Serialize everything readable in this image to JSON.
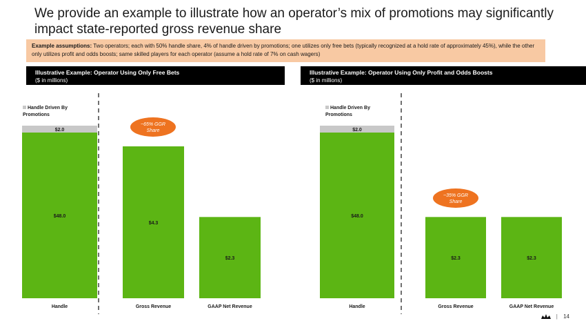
{
  "title": "We provide an example to illustrate how an operator’s mix of promotions may significantly impact state-reported gross revenue share",
  "assumptions": {
    "label": "Example assumptions:",
    "text": "Two operators; each with 50% handle share, 4% of handle driven by promotions; one utilizes only free bets (typically recognized at a hold rate of approximately 45%), while the other only utilizes profit and odds boosts; same skilled players for each operator (assume a hold rate of 7% on cash wagers)"
  },
  "page_number": "14",
  "colors": {
    "green": "#5cb514",
    "gray": "#c8c8c8",
    "orange": "#ee7320",
    "banner": "#000000"
  },
  "chart_data": [
    {
      "type": "bar",
      "title": "Illustrative Example: Operator Using Only Free Bets",
      "subtitle": "($ in millions)",
      "categories": [
        "Handle",
        "Gross Revenue",
        "GAAP Net Revenue"
      ],
      "series": [
        {
          "name": "",
          "values": [
            48.0,
            4.3,
            2.3
          ],
          "labels": [
            "$48.0",
            "$4.3",
            "$2.3"
          ]
        },
        {
          "name": "Handle Driven By Promotions",
          "values": [
            2.0,
            0,
            0
          ],
          "labels": [
            "$2.0",
            "",
            ""
          ]
        }
      ],
      "legend": "Handle Driven By Promotions",
      "callout": "~65% GGR Share"
    },
    {
      "type": "bar",
      "title": "Illustrative Example: Operator Using Only Profit and Odds Boosts",
      "subtitle": "($ in millions)",
      "categories": [
        "Handle",
        "Gross Revenue",
        "GAAP Net Revenue"
      ],
      "series": [
        {
          "name": "",
          "values": [
            48.0,
            2.3,
            2.3
          ],
          "labels": [
            "$48.0",
            "$2.3",
            "$2.3"
          ]
        },
        {
          "name": "Handle Driven By Promotions",
          "values": [
            2.0,
            0,
            0
          ],
          "labels": [
            "$2.0",
            "",
            ""
          ]
        }
      ],
      "legend": "Handle Driven By Promotions",
      "callout": "~35% GGR Share"
    }
  ]
}
